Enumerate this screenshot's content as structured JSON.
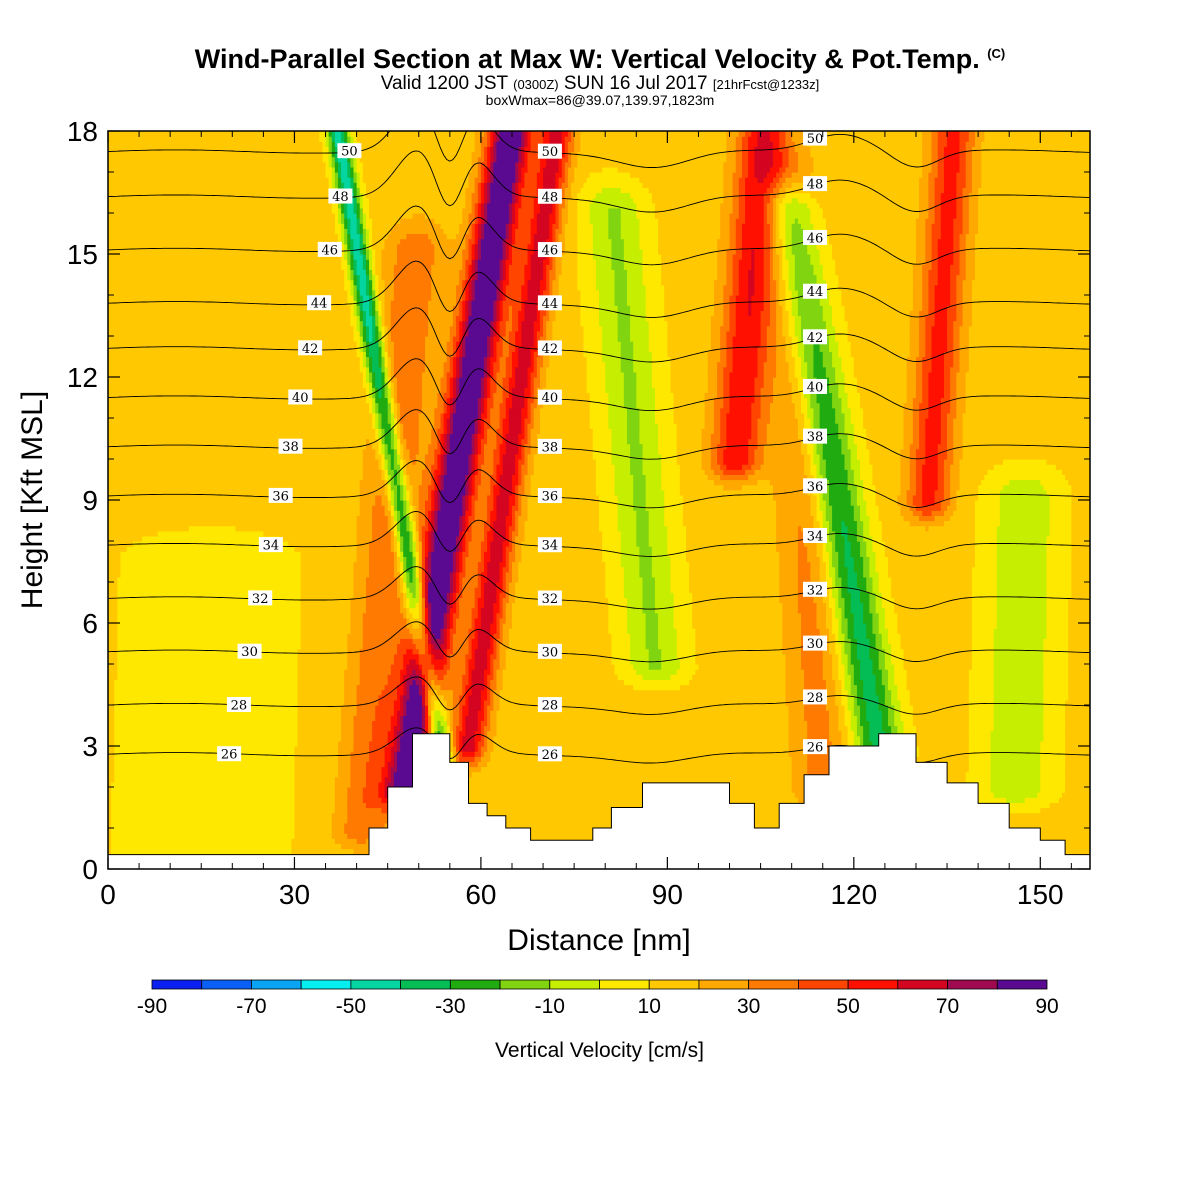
{
  "header": {
    "title": "Wind-Parallel Section at Max W: Vertical Velocity & Pot.Temp.",
    "copyright_mark": "(C)",
    "valid_prefix": "Valid 1200 JST",
    "valid_utc": "(0300Z)",
    "valid_date": "SUN 16 Jul 2017",
    "forecast_info": "[21hrFcst@1233z]",
    "box_info": "boxWmax=86@39.07,139.97,1823m"
  },
  "chart_data": {
    "type": "heatmap",
    "xlabel": "Distance [nm]",
    "ylabel": "Height [Kft MSL]",
    "xlim": [
      0,
      158
    ],
    "ylim": [
      0,
      18
    ],
    "x_ticks": [
      0,
      30,
      60,
      90,
      120,
      150
    ],
    "y_ticks": [
      0,
      3,
      6,
      9,
      12,
      15,
      18
    ],
    "grid": false,
    "colorbar": {
      "label": "Vertical Velocity [cm/s]",
      "placement": "bottom",
      "boundaries": [
        -90,
        -80,
        -70,
        -60,
        -50,
        -40,
        -30,
        -20,
        -10,
        0,
        10,
        20,
        30,
        40,
        50,
        60,
        70,
        80,
        90
      ],
      "tick_labels": [
        "-90",
        "-70",
        "-50",
        "-30",
        "-10",
        "10",
        "30",
        "50",
        "70",
        "90"
      ],
      "colors": [
        "#0a1ff0",
        "#0a60f5",
        "#0aa4f5",
        "#05eef0",
        "#05d5a0",
        "#05bd55",
        "#20ab10",
        "#80d510",
        "#c5ee00",
        "#ffe800",
        "#ffc800",
        "#ffa800",
        "#ff7a00",
        "#ff4500",
        "#ff1000",
        "#d40520",
        "#a00a50",
        "#5a0a90"
      ]
    },
    "vertical_velocity_features": [
      {
        "center_x": 48,
        "height_bottom": 2,
        "height_top": 18,
        "shift_per_kft": 1.05,
        "width_nm": 3.4,
        "peak_cm_s": 86
      },
      {
        "center_x": 54,
        "height_bottom": 2.5,
        "height_top": 18,
        "shift_per_kft": -1.1,
        "width_nm": 1.8,
        "peak_cm_s": -60
      },
      {
        "center_x": 58,
        "height_bottom": 3,
        "height_top": 18,
        "shift_per_kft": 0.95,
        "width_nm": 2.7,
        "peak_cm_s": 52
      },
      {
        "center_x": 41,
        "height_bottom": 1,
        "height_top": 15,
        "shift_per_kft": 0.6,
        "width_nm": 4.5,
        "peak_cm_s": 25
      },
      {
        "center_x": 15,
        "height_bottom": 0,
        "height_top": 7.5,
        "shift_per_kft": 0.2,
        "width_nm": 14,
        "peak_cm_s": -12
      },
      {
        "center_x": 88,
        "height_bottom": 5,
        "height_top": 16,
        "shift_per_kft": -0.6,
        "width_nm": 5,
        "peak_cm_s": -25
      },
      {
        "center_x": 101,
        "height_bottom": 10,
        "height_top": 18,
        "shift_per_kft": 0.55,
        "width_nm": 4,
        "peak_cm_s": 45
      },
      {
        "center_x": 115,
        "height_bottom": 2,
        "height_top": 17,
        "shift_per_kft": -0.4,
        "width_nm": 4.5,
        "peak_cm_s": 20
      },
      {
        "center_x": 124,
        "height_bottom": 3,
        "height_top": 16,
        "shift_per_kft": -1.1,
        "width_nm": 4,
        "peak_cm_s": -48
      },
      {
        "center_x": 132,
        "height_bottom": 9,
        "height_top": 18,
        "shift_per_kft": 0.45,
        "width_nm": 3.5,
        "peak_cm_s": 40
      },
      {
        "center_x": 146,
        "height_bottom": 2,
        "height_top": 9,
        "shift_per_kft": 0.2,
        "width_nm": 6,
        "peak_cm_s": -22
      }
    ],
    "theta_contours": [
      {
        "label": "26",
        "height_kft": 2.8
      },
      {
        "label": "28",
        "height_kft": 4.0
      },
      {
        "label": "30",
        "height_kft": 5.3
      },
      {
        "label": "32",
        "height_kft": 6.6
      },
      {
        "label": "34",
        "height_kft": 7.9
      },
      {
        "label": "36",
        "height_kft": 9.1
      },
      {
        "label": "38",
        "height_kft": 10.3
      },
      {
        "label": "40",
        "height_kft": 11.5
      },
      {
        "label": "42",
        "height_kft": 12.7
      },
      {
        "label": "44",
        "height_kft": 13.8
      },
      {
        "label": "46",
        "height_kft": 15.1
      },
      {
        "label": "48",
        "height_kft": 16.4
      },
      {
        "label": "50",
        "height_kft": 17.5
      }
    ],
    "terrain": [
      {
        "x": 0,
        "h": 0.35
      },
      {
        "x": 42,
        "h": 0.35
      },
      {
        "x": 42,
        "h": 1.0
      },
      {
        "x": 45,
        "h": 1.0
      },
      {
        "x": 45,
        "h": 2.0
      },
      {
        "x": 49,
        "h": 2.0
      },
      {
        "x": 49,
        "h": 3.3
      },
      {
        "x": 55,
        "h": 3.3
      },
      {
        "x": 55,
        "h": 2.6
      },
      {
        "x": 58,
        "h": 2.6
      },
      {
        "x": 58,
        "h": 1.6
      },
      {
        "x": 61,
        "h": 1.6
      },
      {
        "x": 61,
        "h": 1.3
      },
      {
        "x": 64,
        "h": 1.3
      },
      {
        "x": 64,
        "h": 1.0
      },
      {
        "x": 68,
        "h": 1.0
      },
      {
        "x": 68,
        "h": 0.7
      },
      {
        "x": 78,
        "h": 0.7
      },
      {
        "x": 78,
        "h": 1.0
      },
      {
        "x": 81,
        "h": 1.0
      },
      {
        "x": 81,
        "h": 1.5
      },
      {
        "x": 86,
        "h": 1.5
      },
      {
        "x": 86,
        "h": 2.1
      },
      {
        "x": 100,
        "h": 2.1
      },
      {
        "x": 100,
        "h": 1.6
      },
      {
        "x": 104,
        "h": 1.6
      },
      {
        "x": 104,
        "h": 1.0
      },
      {
        "x": 108,
        "h": 1.0
      },
      {
        "x": 108,
        "h": 1.6
      },
      {
        "x": 112,
        "h": 1.6
      },
      {
        "x": 112,
        "h": 2.3
      },
      {
        "x": 116,
        "h": 2.3
      },
      {
        "x": 116,
        "h": 3.0
      },
      {
        "x": 124,
        "h": 3.0
      },
      {
        "x": 124,
        "h": 3.3
      },
      {
        "x": 130,
        "h": 3.3
      },
      {
        "x": 130,
        "h": 2.6
      },
      {
        "x": 135,
        "h": 2.6
      },
      {
        "x": 135,
        "h": 2.1
      },
      {
        "x": 140,
        "h": 2.1
      },
      {
        "x": 140,
        "h": 1.6
      },
      {
        "x": 145,
        "h": 1.6
      },
      {
        "x": 145,
        "h": 1.0
      },
      {
        "x": 150,
        "h": 1.0
      },
      {
        "x": 150,
        "h": 0.7
      },
      {
        "x": 154,
        "h": 0.7
      },
      {
        "x": 154,
        "h": 0.35
      },
      {
        "x": 158,
        "h": 0.35
      }
    ]
  }
}
